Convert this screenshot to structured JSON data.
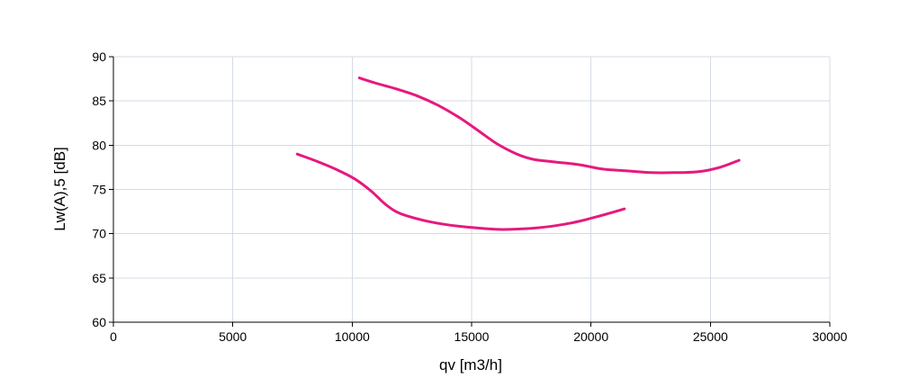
{
  "chart_data": {
    "type": "line",
    "title": "",
    "xlabel": "qv [m3/h]",
    "ylabel": "Lw(A),5 [dB]",
    "xlim": [
      0,
      30000
    ],
    "ylim": [
      60,
      90
    ],
    "xticks": [
      0,
      5000,
      10000,
      15000,
      20000,
      25000,
      30000
    ],
    "yticks": [
      60,
      65,
      70,
      75,
      80,
      85,
      90
    ],
    "grid": true,
    "legend": "none",
    "series_color": "#e6197e",
    "series": [
      {
        "x": [
          10300,
          11000,
          11800,
          12700,
          13600,
          14500,
          15300,
          16100,
          16900,
          17600,
          18500,
          19500,
          20500,
          21500,
          22500,
          23500,
          24500,
          25400,
          26200
        ],
        "y": [
          87.6,
          87.0,
          86.4,
          85.6,
          84.5,
          83.1,
          81.6,
          80.1,
          79.0,
          78.4,
          78.1,
          77.8,
          77.3,
          77.1,
          76.9,
          76.9,
          77.0,
          77.5,
          78.3
        ]
      },
      {
        "x": [
          7700,
          8500,
          9300,
          10100,
          10800,
          11400,
          12000,
          13000,
          14000,
          15000,
          16000,
          16700,
          17500,
          18500,
          19500,
          20500,
          21400
        ],
        "y": [
          79.0,
          78.2,
          77.3,
          76.2,
          74.8,
          73.3,
          72.3,
          71.5,
          71.0,
          70.7,
          70.5,
          70.5,
          70.6,
          70.9,
          71.4,
          72.1,
          72.8
        ]
      }
    ]
  }
}
